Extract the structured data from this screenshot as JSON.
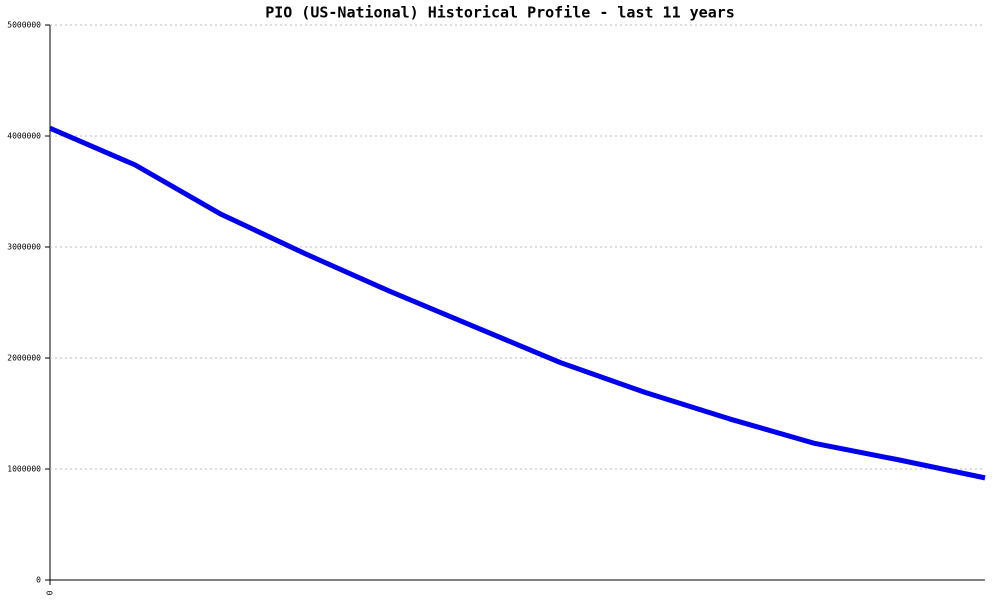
{
  "chart_data": {
    "type": "line",
    "title": "PIO (US-National) Historical Profile - last 11 years",
    "categories": [
      "0",
      null,
      null,
      null,
      null,
      null,
      null,
      null,
      null,
      null,
      null,
      null
    ],
    "series": [
      {
        "color": "#0000ee",
        "values": [
          4070000,
          3740000,
          3300000,
          2940000,
          2600000,
          2280000,
          1960000,
          1690000,
          1450000,
          1230000,
          1080000,
          920000
        ]
      }
    ],
    "ylim": [
      0,
      5000000
    ],
    "yticks": [
      0,
      1000000,
      2000000,
      3000000,
      4000000,
      5000000
    ],
    "grid": true
  }
}
